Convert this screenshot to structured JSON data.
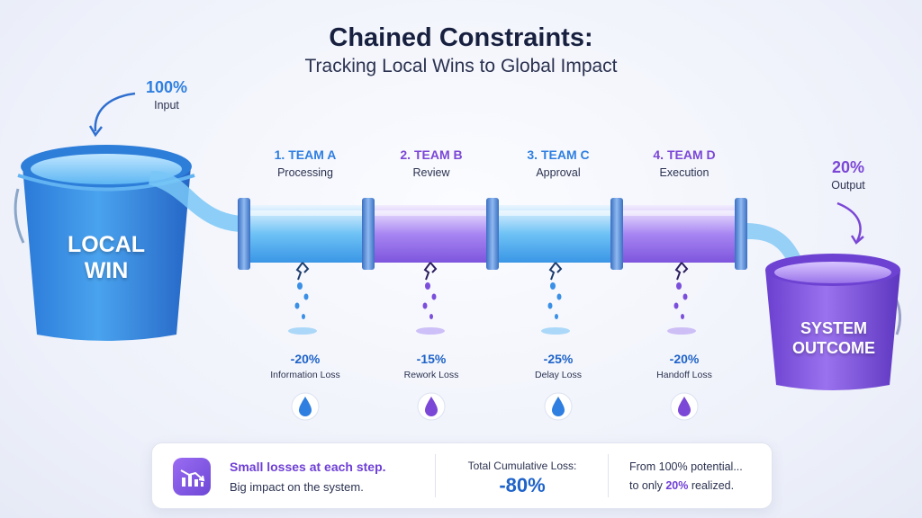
{
  "header": {
    "title": "Chained Constraints:",
    "subtitle": "Tracking Local Wins to Global Impact"
  },
  "input": {
    "percent": "100%",
    "label": "Input"
  },
  "output": {
    "percent": "20%",
    "label": "Output"
  },
  "buckets": {
    "left": {
      "line1": "LOCAL",
      "line2": "WIN"
    },
    "right": {
      "line1": "SYSTEM",
      "line2": "OUTCOME"
    }
  },
  "teams": [
    {
      "name": "1. TEAM A",
      "role": "Processing",
      "loss": "-20%",
      "loss_label": "Information Loss",
      "color": "#2f7fe0"
    },
    {
      "name": "2. TEAM B",
      "role": "Review",
      "loss": "-15%",
      "loss_label": "Rework Loss",
      "color": "#7b47d6"
    },
    {
      "name": "3. TEAM C",
      "role": "Approval",
      "loss": "-25%",
      "loss_label": "Delay Loss",
      "color": "#2f7fe0"
    },
    {
      "name": "4. TEAM D",
      "role": "Execution",
      "loss": "-20%",
      "loss_label": "Handoff Loss",
      "color": "#7b47d6"
    }
  ],
  "summary": {
    "headline": "Small losses at each step.",
    "subline": "Big impact on the system.",
    "total_label": "Total Cumulative Loss:",
    "total_value": "-80%",
    "from_text": "From 100% potential...",
    "to_prefix": "to only",
    "to_value": "20%",
    "to_suffix": "realized."
  },
  "colors": {
    "blue": "#2f7fe0",
    "purple": "#7b47d6",
    "dark_blue": "#1f63c9"
  },
  "icons": [
    "curved-arrow-icon",
    "water-drop-icon",
    "chart-icon"
  ]
}
